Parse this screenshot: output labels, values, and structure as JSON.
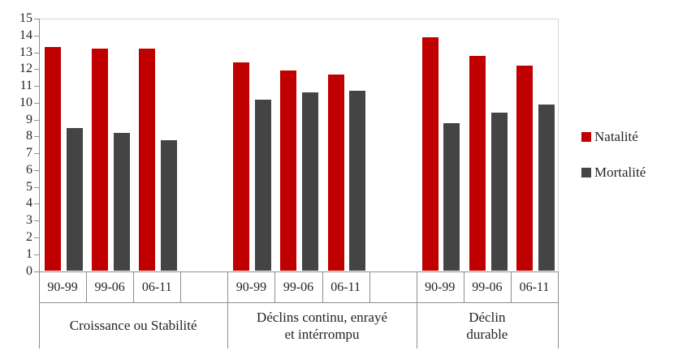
{
  "chart_data": {
    "type": "bar",
    "title": "",
    "xlabel": "",
    "ylabel": "",
    "ylim": [
      0,
      15
    ],
    "y_ticks": [
      0,
      1,
      2,
      3,
      4,
      5,
      6,
      7,
      8,
      9,
      10,
      11,
      12,
      13,
      14,
      15
    ],
    "grid": false,
    "legend_position": "right",
    "groups": [
      {
        "label": "Croissance ou Stabilité",
        "label_lines": [
          "Croissance ou Stabilité"
        ],
        "periods": [
          "90-99",
          "99-06",
          "06-11"
        ]
      },
      {
        "label": "Déclins continu, enrayé et intérrompu",
        "label_lines": [
          "Déclins continu, enrayé",
          "et intérrompu"
        ],
        "periods": [
          "90-99",
          "99-06",
          "06-11"
        ]
      },
      {
        "label": "Déclin durable",
        "label_lines": [
          "Déclin",
          "durable"
        ],
        "periods": [
          "90-99",
          "99-06",
          "06-11"
        ]
      }
    ],
    "series": [
      {
        "name": "Natalité",
        "color": "#c00000",
        "values": [
          [
            13.3,
            13.2,
            13.2
          ],
          [
            12.4,
            11.9,
            11.7
          ],
          [
            13.9,
            12.8,
            12.2
          ]
        ]
      },
      {
        "name": "Mortalité",
        "color": "#444444",
        "values": [
          [
            8.5,
            8.2,
            7.8
          ],
          [
            10.2,
            10.6,
            10.7
          ],
          [
            8.8,
            9.4,
            9.9
          ]
        ]
      }
    ],
    "style": {
      "axis_line_color": "#8e8e8e",
      "plot_border_color": "#d6d6d6",
      "text_color": "#242424",
      "background": "#ffffff"
    }
  }
}
